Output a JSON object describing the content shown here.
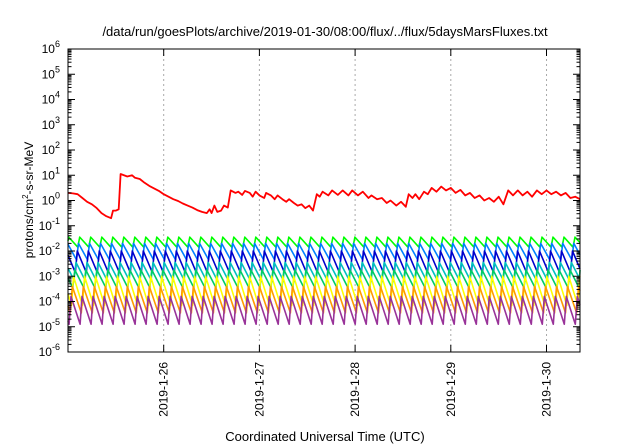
{
  "chart_data": {
    "type": "line",
    "title": "/data/run/goesPlots/archive/2019-01-30/08:00/flux/../flux/5daysMarsFluxes.txt",
    "xlabel": "Coordinated Universal Time (UTC)",
    "ylabel": "protons/cm2-s-sr-MeV",
    "ylabel_parts": {
      "before": "protons/cm",
      "sup": "2",
      "after": "-s-sr-MeV"
    },
    "yscale": "log",
    "ylim_exp": [
      -6,
      6
    ],
    "ytick_exponents": [
      -6,
      -5,
      -4,
      -3,
      -2,
      -1,
      0,
      1,
      2,
      3,
      4,
      5,
      6
    ],
    "ytick_base": "10",
    "xlim_days": [
      0,
      5.35
    ],
    "xticks": [
      {
        "day": 1,
        "label": "2019-1-26"
      },
      {
        "day": 2,
        "label": "2019-1-27"
      },
      {
        "day": 3,
        "label": "2019-1-28"
      },
      {
        "day": 4,
        "label": "2019-1-29"
      },
      {
        "day": 5,
        "label": "2019-1-30"
      }
    ],
    "grid": "vertical dotted at x ticks",
    "legend": "none",
    "series": [
      {
        "color": "#ff0000",
        "points_log": [
          [
            0.0,
            0.3
          ],
          [
            0.05,
            0.28
          ],
          [
            0.1,
            0.25
          ],
          [
            0.15,
            0.1
          ],
          [
            0.2,
            -0.05
          ],
          [
            0.25,
            -0.15
          ],
          [
            0.3,
            -0.3
          ],
          [
            0.35,
            -0.5
          ],
          [
            0.4,
            -0.62
          ],
          [
            0.45,
            -0.7
          ],
          [
            0.47,
            -0.4
          ],
          [
            0.5,
            -0.4
          ],
          [
            0.53,
            -0.35
          ],
          [
            0.55,
            1.05
          ],
          [
            0.62,
            0.95
          ],
          [
            0.67,
            1.0
          ],
          [
            0.7,
            0.9
          ],
          [
            0.75,
            0.85
          ],
          [
            0.8,
            0.7
          ],
          [
            0.85,
            0.58
          ],
          [
            0.9,
            0.48
          ],
          [
            0.95,
            0.38
          ],
          [
            1.0,
            0.25
          ],
          [
            1.05,
            0.15
          ],
          [
            1.1,
            0.05
          ],
          [
            1.15,
            -0.02
          ],
          [
            1.2,
            -0.12
          ],
          [
            1.25,
            -0.2
          ],
          [
            1.3,
            -0.28
          ],
          [
            1.35,
            -0.38
          ],
          [
            1.4,
            -0.45
          ],
          [
            1.45,
            -0.5
          ],
          [
            1.48,
            -0.35
          ],
          [
            1.5,
            -0.5
          ],
          [
            1.53,
            -0.2
          ],
          [
            1.56,
            -0.45
          ],
          [
            1.6,
            -0.4
          ],
          [
            1.63,
            -0.2
          ],
          [
            1.67,
            -0.28
          ],
          [
            1.7,
            0.4
          ],
          [
            1.75,
            0.3
          ],
          [
            1.78,
            0.35
          ],
          [
            1.82,
            0.22
          ],
          [
            1.85,
            0.38
          ],
          [
            1.9,
            0.3
          ],
          [
            1.93,
            0.15
          ],
          [
            1.96,
            0.35
          ],
          [
            2.0,
            0.2
          ],
          [
            2.05,
            0.1
          ],
          [
            2.07,
            0.3
          ],
          [
            2.12,
            0.2
          ],
          [
            2.16,
            0.05
          ],
          [
            2.19,
            0.2
          ],
          [
            2.24,
            0.05
          ],
          [
            2.28,
            -0.05
          ],
          [
            2.31,
            0.05
          ],
          [
            2.36,
            -0.1
          ],
          [
            2.4,
            -0.2
          ],
          [
            2.44,
            -0.15
          ],
          [
            2.48,
            -0.3
          ],
          [
            2.52,
            -0.2
          ],
          [
            2.56,
            -0.4
          ],
          [
            2.6,
            0.25
          ],
          [
            2.63,
            0.15
          ],
          [
            2.66,
            0.35
          ],
          [
            2.72,
            0.2
          ],
          [
            2.76,
            0.4
          ],
          [
            2.82,
            0.22
          ],
          [
            2.87,
            0.4
          ],
          [
            2.93,
            0.2
          ],
          [
            2.97,
            0.4
          ],
          [
            3.03,
            0.2
          ],
          [
            3.08,
            0.35
          ],
          [
            3.14,
            0.1
          ],
          [
            3.17,
            0.2
          ],
          [
            3.23,
            0.05
          ],
          [
            3.28,
            0.1
          ],
          [
            3.33,
            -0.1
          ],
          [
            3.37,
            0.0
          ],
          [
            3.43,
            -0.2
          ],
          [
            3.48,
            -0.05
          ],
          [
            3.53,
            -0.25
          ],
          [
            3.56,
            0.25
          ],
          [
            3.6,
            0.1
          ],
          [
            3.63,
            0.25
          ],
          [
            3.67,
            0.05
          ],
          [
            3.72,
            0.35
          ],
          [
            3.76,
            0.25
          ],
          [
            3.8,
            0.5
          ],
          [
            3.85,
            0.35
          ],
          [
            3.9,
            0.55
          ],
          [
            3.95,
            0.4
          ],
          [
            4.0,
            0.5
          ],
          [
            4.05,
            0.3
          ],
          [
            4.1,
            0.42
          ],
          [
            4.15,
            0.2
          ],
          [
            4.2,
            0.3
          ],
          [
            4.25,
            0.1
          ],
          [
            4.3,
            0.2
          ],
          [
            4.35,
            0.0
          ],
          [
            4.4,
            0.1
          ],
          [
            4.45,
            -0.05
          ],
          [
            4.5,
            0.15
          ],
          [
            4.55,
            -0.15
          ],
          [
            4.6,
            0.4
          ],
          [
            4.65,
            0.2
          ],
          [
            4.7,
            0.4
          ],
          [
            4.75,
            0.2
          ],
          [
            4.8,
            0.35
          ],
          [
            4.85,
            0.15
          ],
          [
            4.9,
            0.4
          ],
          [
            4.95,
            0.25
          ],
          [
            5.0,
            0.4
          ],
          [
            5.05,
            0.25
          ],
          [
            5.1,
            0.35
          ],
          [
            5.15,
            0.2
          ],
          [
            5.2,
            0.3
          ],
          [
            5.25,
            0.1
          ],
          [
            5.3,
            0.15
          ],
          [
            5.35,
            0.05
          ]
        ]
      },
      {
        "color": "#00ff00",
        "pattern": "sawtooth",
        "period_days": 0.115,
        "log_low": -1.85,
        "log_high": -1.45
      },
      {
        "color": "#0080ff",
        "pattern": "sawtooth",
        "period_days": 0.115,
        "log_low": -2.35,
        "log_high": -1.7
      },
      {
        "color": "#0000cc",
        "pattern": "sawtooth",
        "period_days": 0.115,
        "log_low": -2.85,
        "log_high": -2.0
      },
      {
        "color": "#00c0c0",
        "pattern": "sawtooth",
        "period_days": 0.115,
        "log_low": -3.15,
        "log_high": -2.45
      },
      {
        "color": "#00cc66",
        "pattern": "sawtooth",
        "period_days": 0.115,
        "log_low": -3.45,
        "log_high": -2.75
      },
      {
        "color": "#ffff00",
        "pattern": "sawtooth",
        "period_days": 0.115,
        "log_low": -4.15,
        "log_high": -3.0
      },
      {
        "color": "#ff9900",
        "pattern": "sawtooth",
        "period_days": 0.115,
        "log_low": -4.45,
        "log_high": -3.4
      },
      {
        "color": "#993399",
        "pattern": "sawtooth",
        "period_days": 0.115,
        "log_low": -4.9,
        "log_high": -3.8
      }
    ]
  }
}
